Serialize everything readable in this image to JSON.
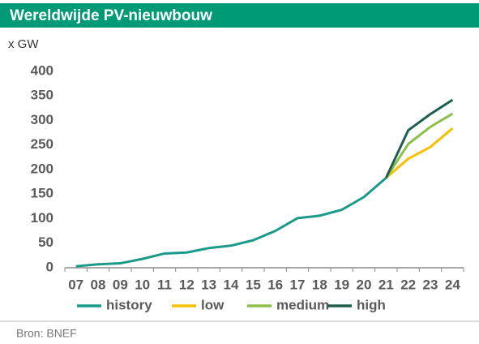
{
  "chart_data": {
    "type": "line",
    "title": "Wereldwijde PV-nieuwbouw",
    "y_label": "x GW",
    "source": "Bron: BNEF",
    "categories": [
      "07",
      "08",
      "09",
      "10",
      "11",
      "12",
      "13",
      "14",
      "15",
      "16",
      "17",
      "18",
      "19",
      "20",
      "21",
      "22",
      "23",
      "24"
    ],
    "series": [
      {
        "name": "history",
        "color": "#1a9a8a",
        "values": [
          3,
          7,
          9,
          18,
          29,
          31,
          40,
          45,
          56,
          75,
          101,
          106,
          118,
          144,
          183,
          null,
          null,
          null
        ]
      },
      {
        "name": "low",
        "color": "#f5c100",
        "values": [
          null,
          null,
          null,
          null,
          null,
          null,
          null,
          null,
          null,
          null,
          null,
          null,
          null,
          null,
          183,
          222,
          246,
          284
        ]
      },
      {
        "name": "medium",
        "color": "#8dc04a",
        "values": [
          null,
          null,
          null,
          null,
          null,
          null,
          null,
          null,
          null,
          null,
          null,
          null,
          null,
          null,
          183,
          252,
          287,
          314
        ]
      },
      {
        "name": "high",
        "color": "#1d5e4f",
        "values": [
          null,
          null,
          null,
          null,
          null,
          null,
          null,
          null,
          null,
          null,
          null,
          null,
          null,
          null,
          183,
          280,
          313,
          342
        ]
      }
    ],
    "ylim": [
      0,
      400
    ],
    "yticks": [
      0,
      50,
      100,
      150,
      200,
      250,
      300,
      350,
      400
    ],
    "grid": false
  }
}
